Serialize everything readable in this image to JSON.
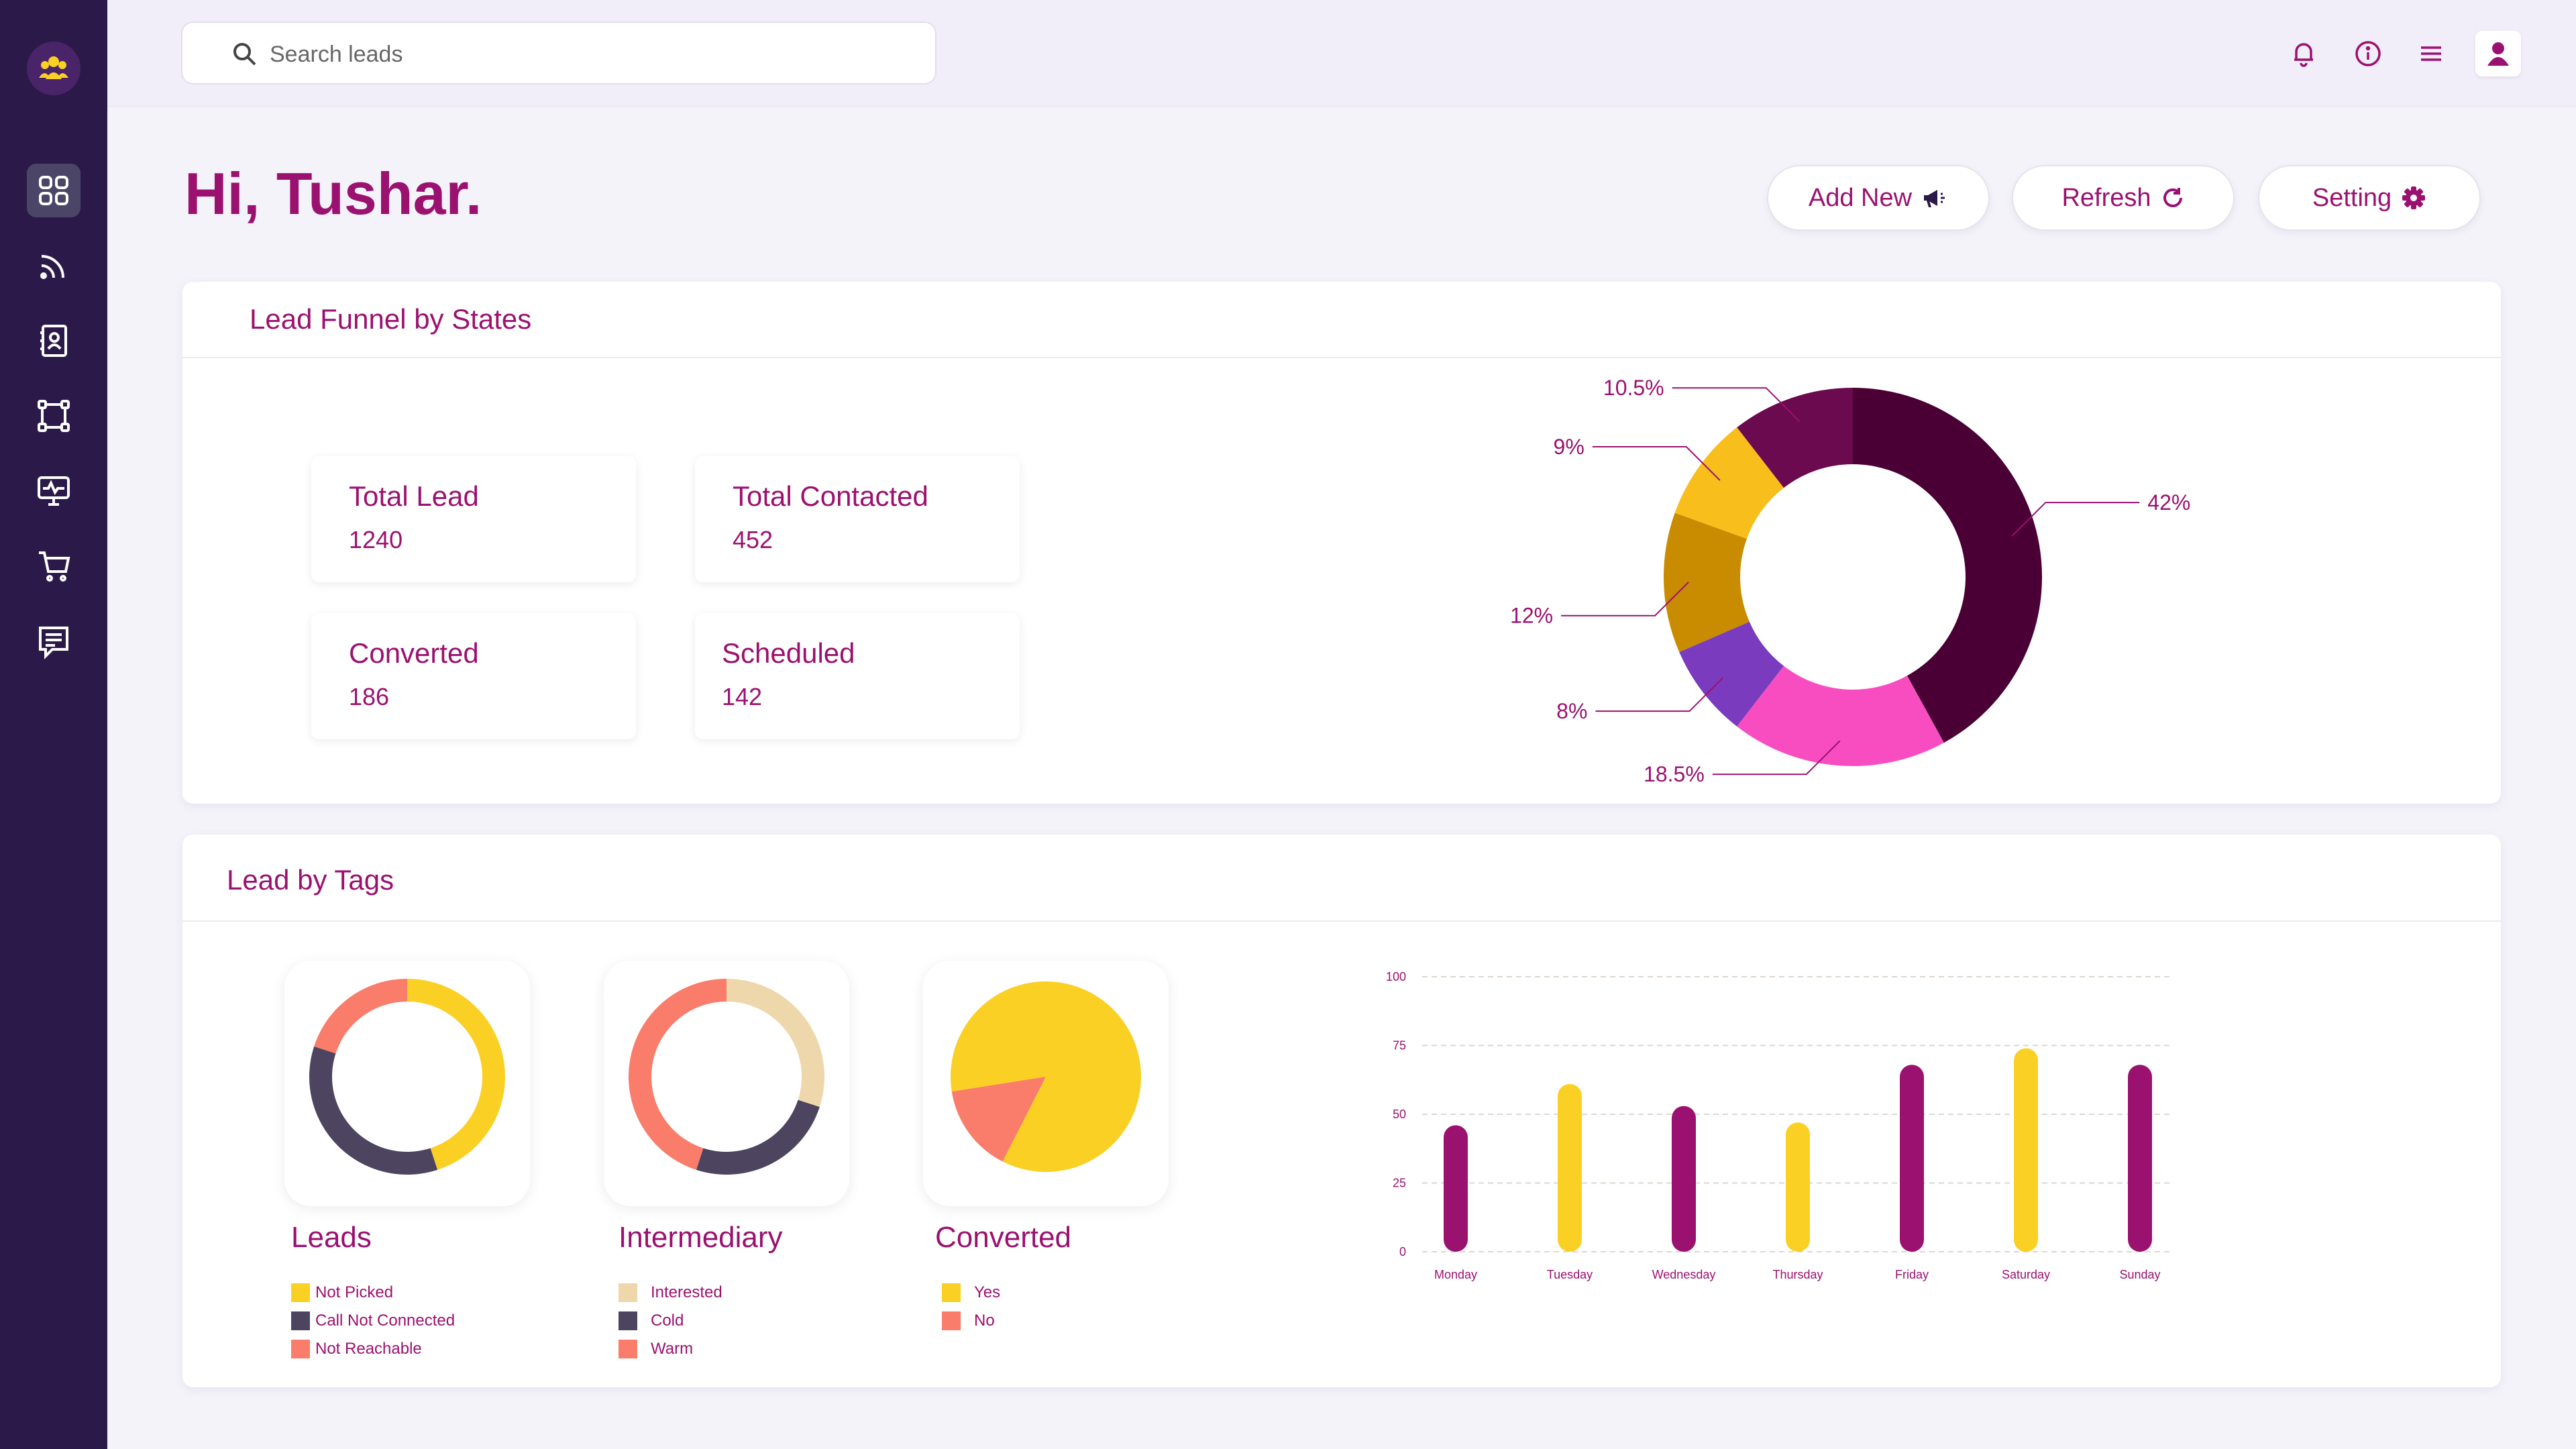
{
  "search": {
    "placeholder": "Search leads"
  },
  "greeting": "Hi, Tushar.",
  "actions": {
    "add_new": "Add New",
    "refresh": "Refresh",
    "setting": "Setting"
  },
  "funnel": {
    "title": "Lead Funnel by States",
    "stats": [
      {
        "label": "Total Lead",
        "value": "1240"
      },
      {
        "label": "Total Contacted",
        "value": "452"
      },
      {
        "label": "Converted",
        "value": "186"
      },
      {
        "label": "Scheduled",
        "value": "142"
      }
    ]
  },
  "tags": {
    "title": "Lead by Tags",
    "groups": [
      {
        "title": "Leads",
        "legend": [
          "Not Picked",
          "Call Not Connected",
          "Not Reachable"
        ]
      },
      {
        "title": "Intermediary",
        "legend": [
          "Interested",
          "Cold",
          "Warm"
        ]
      },
      {
        "title": "Converted",
        "legend": [
          "Yes",
          "No"
        ]
      }
    ]
  },
  "colors": {
    "accent": "#9b1170",
    "sidebar": "#2b1a49",
    "yellow": "#fbd024",
    "coral": "#fa7c6a",
    "slate": "#4d4560",
    "beige": "#eed7ab",
    "bar_purple": "#9b1170"
  },
  "icons": [
    "logo-icon",
    "dashboard-icon",
    "feed-icon",
    "contacts-icon",
    "workflow-icon",
    "monitor-icon",
    "cart-icon",
    "chat-icon",
    "search-icon",
    "bell-icon",
    "info-icon",
    "menu-icon",
    "user-icon",
    "megaphone-icon",
    "refresh-icon",
    "gear-icon"
  ],
  "chart_data": [
    {
      "type": "pie",
      "labels": [
        "10.5%",
        "42%",
        "18.5%",
        "8%",
        "12%",
        "9%"
      ],
      "values": [
        10.5,
        42,
        18.5,
        8,
        12,
        9
      ],
      "colors": [
        "#6b0a4f",
        "#4a0034",
        "#f74dc1",
        "#7a3bbf",
        "#c98b00",
        "#f7be1c"
      ]
    },
    {
      "type": "pie",
      "series": [
        {
          "values": [
            45,
            35,
            20
          ],
          "colors": [
            "#fbd024",
            "#4d4560",
            "#fa7c6a"
          ]
        }
      ]
    },
    {
      "type": "pie",
      "series": [
        {
          "values": [
            30,
            25,
            45
          ],
          "colors": [
            "#eed7ab",
            "#4d4560",
            "#fa7c6a"
          ]
        }
      ]
    },
    {
      "type": "pie",
      "series": [
        {
          "values": [
            85,
            15
          ],
          "colors": [
            "#fbd024",
            "#fa7c6a"
          ]
        }
      ]
    },
    {
      "type": "bar",
      "categories": [
        "Monday",
        "Tuesday",
        "Wednesday",
        "Thursday",
        "Friday",
        "Saturday",
        "Sunday"
      ],
      "values": [
        46,
        61,
        53,
        47,
        68,
        74,
        68
      ],
      "colors": [
        "#9b1170",
        "#fbd024",
        "#9b1170",
        "#fbd024",
        "#9b1170",
        "#fbd024",
        "#9b1170"
      ],
      "yticks": [
        "100",
        "75",
        "50",
        "25",
        "0"
      ],
      "ylim": [
        0,
        100
      ],
      "grid": true
    }
  ]
}
